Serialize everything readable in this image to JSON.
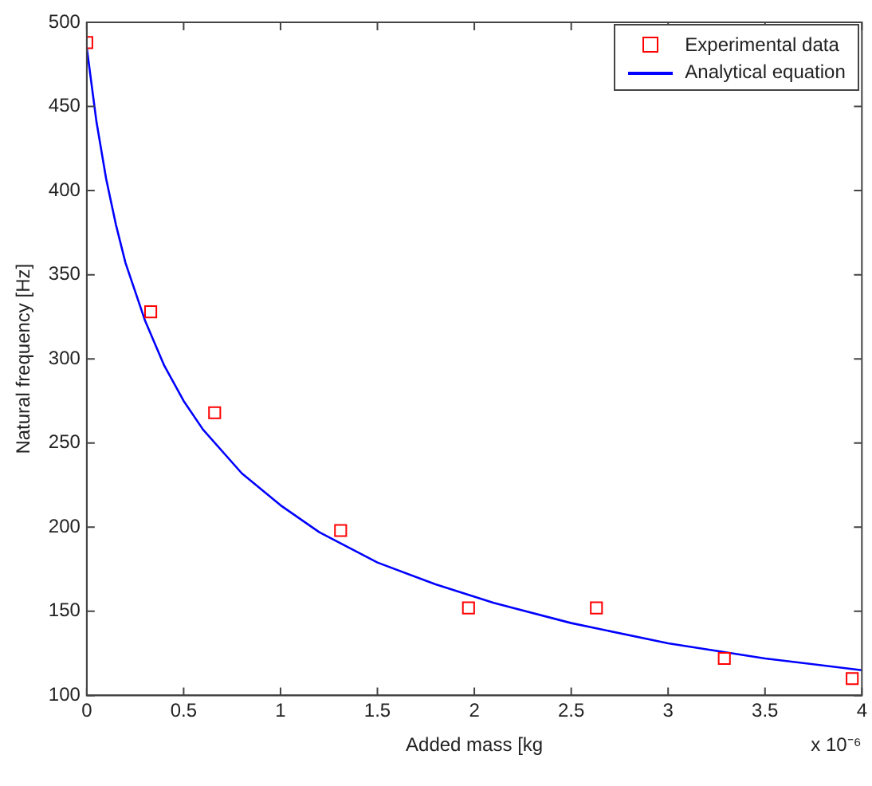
{
  "chart_data": {
    "type": "scatter",
    "xlabel": "Added mass [kg",
    "ylabel": "Natural frequency [Hz]",
    "annotations": [
      "x 10⁻⁶"
    ],
    "xlim": [
      0,
      4
    ],
    "xticks": [
      0,
      0.5,
      1,
      1.5,
      2,
      2.5,
      3,
      3.5,
      4
    ],
    "ylim": [
      100,
      500
    ],
    "yticks": [
      100,
      150,
      200,
      250,
      300,
      350,
      400,
      450,
      500
    ],
    "grid": false,
    "legend": "top right",
    "series": [
      {
        "name": "Experimental data",
        "marker": "square",
        "color": "#ff0000",
        "x": [
          0,
          0.33,
          0.66,
          1.31,
          1.97,
          2.63,
          3.29,
          3.95
        ],
        "values": [
          488,
          328,
          268,
          198,
          152,
          152,
          122,
          110
        ]
      },
      {
        "name": "Analytical equation",
        "type": "line",
        "marker": "none",
        "line_style": "solid",
        "color": "#0000ff",
        "x": [
          0,
          0.05,
          0.1,
          0.15,
          0.2,
          0.3,
          0.4,
          0.5,
          0.6,
          0.8,
          1.0,
          1.2,
          1.5,
          1.8,
          2.1,
          2.5,
          3.0,
          3.5,
          4.0
        ],
        "values": [
          485,
          441,
          407,
          380,
          357,
          323,
          296,
          275,
          258,
          232,
          213,
          197,
          179,
          166,
          155,
          143,
          131,
          122,
          115
        ]
      }
    ]
  }
}
